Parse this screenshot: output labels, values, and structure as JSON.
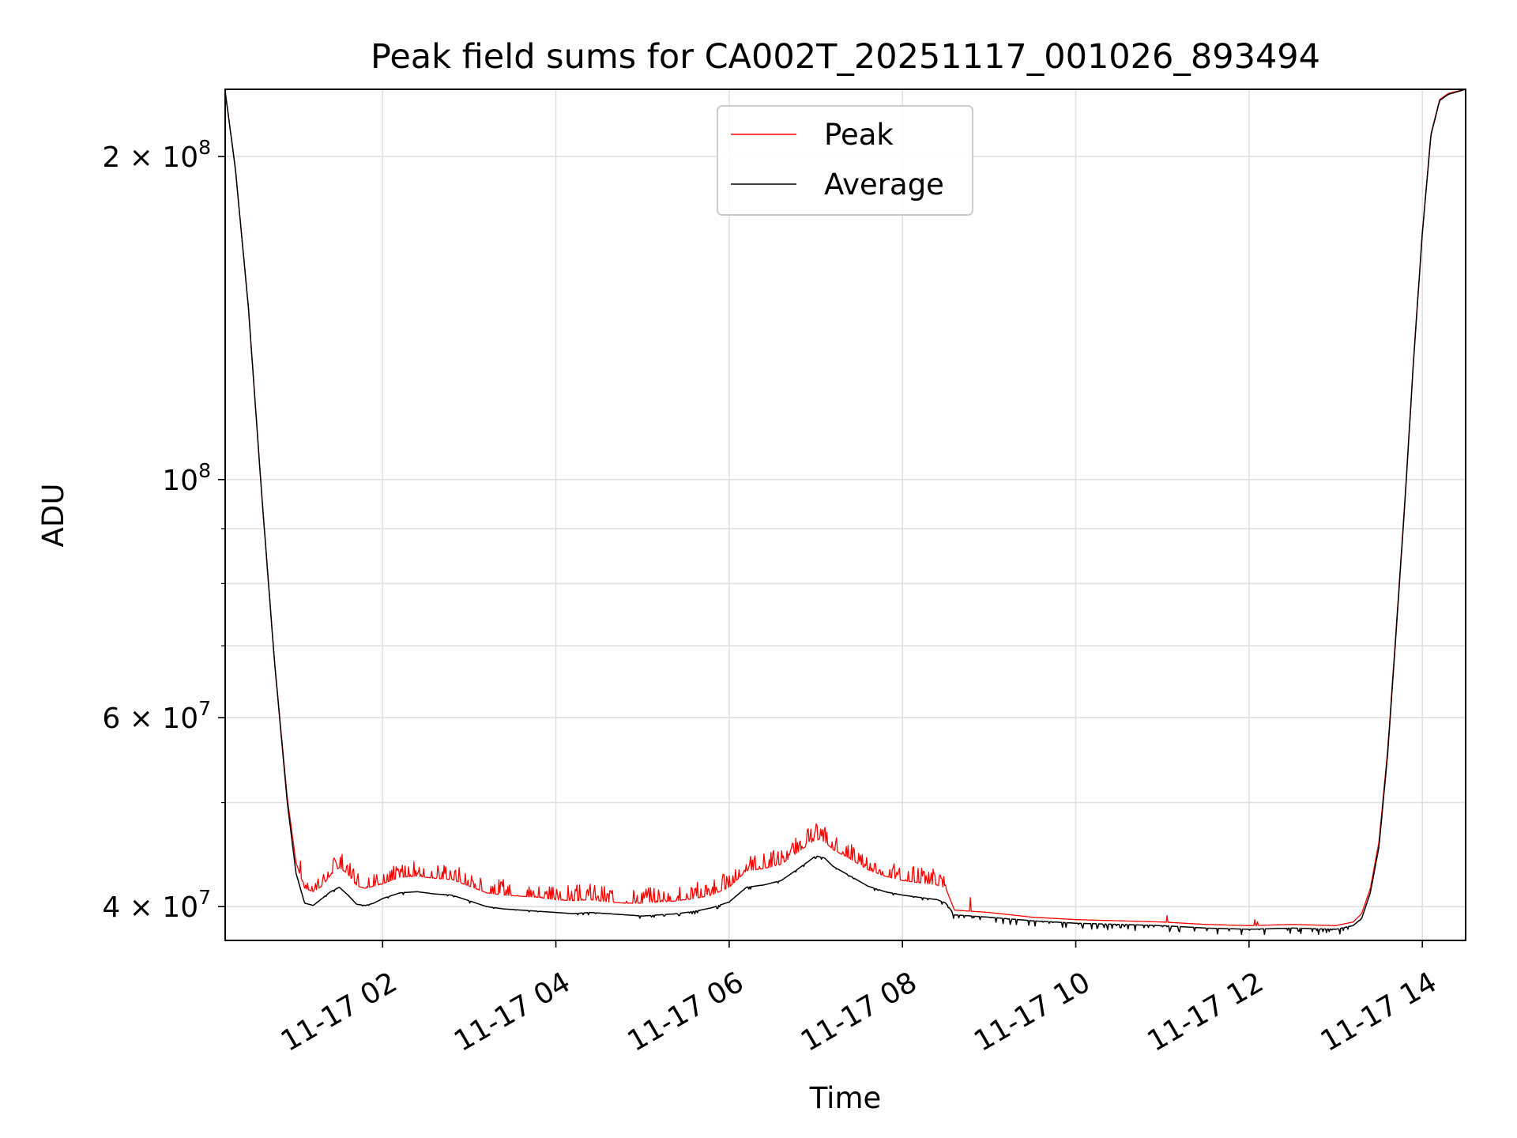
{
  "chart_data": {
    "type": "line",
    "title": "Peak field sums for CA002T_20251117_001026_893494",
    "xlabel": "Time",
    "ylabel": "ADU",
    "yscale": "log",
    "ylim": [
      37200000,
      231000000
    ],
    "xlim_hours": [
      0.183,
      14.5
    ],
    "grid": true,
    "legend": {
      "position": "top-center",
      "entries": [
        "Peak",
        "Average"
      ]
    },
    "x_ticks": [
      {
        "hour": 2,
        "label": "11-17 02"
      },
      {
        "hour": 4,
        "label": "11-17 04"
      },
      {
        "hour": 6,
        "label": "11-17 06"
      },
      {
        "hour": 8,
        "label": "11-17 08"
      },
      {
        "hour": 10,
        "label": "11-17 10"
      },
      {
        "hour": 12,
        "label": "11-17 12"
      },
      {
        "hour": 14,
        "label": "11-17 14"
      }
    ],
    "y_ticks": [
      {
        "value": 40000000,
        "label": "4 × 10",
        "exp": "7"
      },
      {
        "value": 60000000,
        "label": "6 × 10",
        "exp": "7"
      },
      {
        "value": 100000000,
        "label": "10",
        "exp": "8"
      },
      {
        "value": 200000000,
        "label": "2 × 10",
        "exp": "8"
      }
    ],
    "y_minor_ticks": [
      50000000,
      70000000,
      80000000,
      90000000
    ],
    "series": [
      {
        "name": "Peak",
        "color": "#ff0000",
        "x_hours": [
          0.18,
          0.3,
          0.45,
          0.6,
          0.75,
          0.9,
          1.0,
          1.1,
          1.2,
          1.3,
          1.4,
          1.5,
          1.6,
          1.7,
          1.8,
          1.9,
          2.0,
          2.2,
          2.4,
          2.6,
          2.8,
          3.0,
          3.2,
          3.4,
          3.6,
          3.8,
          4.0,
          4.2,
          4.4,
          4.6,
          4.8,
          5.0,
          5.2,
          5.4,
          5.6,
          5.8,
          6.0,
          6.2,
          6.4,
          6.6,
          6.8,
          7.0,
          7.1,
          7.2,
          7.4,
          7.6,
          7.8,
          8.0,
          8.2,
          8.4,
          8.5,
          8.6,
          8.8,
          9.0,
          9.5,
          10.0,
          10.5,
          11.0,
          11.5,
          12.0,
          12.5,
          13.0,
          13.2,
          13.3,
          13.4,
          13.5,
          13.6,
          13.7,
          13.8,
          13.9,
          14.0,
          14.1,
          14.2,
          14.3,
          14.5
        ],
        "values": [
          231000000,
          195000000,
          145000000,
          98000000,
          68000000,
          50500000,
          44000000,
          41600000,
          41300000,
          41800000,
          42800000,
          43500000,
          42900000,
          41800000,
          41600000,
          41800000,
          42000000,
          42600000,
          42700000,
          42500000,
          42400000,
          41800000,
          41200000,
          41000000,
          40900000,
          40800000,
          40600000,
          40500000,
          40600000,
          40400000,
          40300000,
          40300000,
          40400000,
          40500000,
          40700000,
          41000000,
          41700000,
          43200000,
          43400000,
          43800000,
          45000000,
          46200000,
          46000000,
          45200000,
          44300000,
          43300000,
          42700000,
          42300000,
          42100000,
          41900000,
          41600000,
          39700000,
          39600000,
          39500000,
          39100000,
          38900000,
          38800000,
          38700000,
          38500000,
          38400000,
          38500000,
          38400000,
          38700000,
          39400000,
          41600000,
          46000000,
          56000000,
          73000000,
          96000000,
          130000000,
          170000000,
          210000000,
          226000000,
          229000000,
          231000000
        ]
      },
      {
        "name": "Average",
        "color": "#000000",
        "x_hours": [
          0.18,
          0.3,
          0.45,
          0.6,
          0.75,
          0.9,
          1.0,
          1.1,
          1.2,
          1.3,
          1.4,
          1.5,
          1.6,
          1.7,
          1.8,
          1.9,
          2.0,
          2.2,
          2.4,
          2.6,
          2.8,
          3.0,
          3.2,
          3.4,
          3.6,
          3.8,
          4.0,
          4.2,
          4.4,
          4.6,
          4.8,
          5.0,
          5.2,
          5.4,
          5.6,
          5.8,
          6.0,
          6.2,
          6.4,
          6.6,
          6.8,
          7.0,
          7.1,
          7.2,
          7.4,
          7.6,
          7.8,
          8.0,
          8.2,
          8.4,
          8.5,
          8.6,
          8.8,
          9.0,
          9.5,
          10.0,
          10.5,
          11.0,
          11.5,
          12.0,
          12.5,
          13.0,
          13.2,
          13.3,
          13.4,
          13.5,
          13.6,
          13.7,
          13.8,
          13.9,
          14.0,
          14.1,
          14.2,
          14.3,
          14.5
        ],
        "values": [
          231000000,
          195000000,
          145000000,
          98000000,
          68000000,
          50000000,
          43000000,
          40300000,
          40100000,
          40700000,
          41300000,
          41700000,
          41000000,
          40200000,
          40100000,
          40300000,
          40700000,
          41200000,
          41300000,
          41100000,
          41000000,
          40500000,
          40000000,
          39800000,
          39700000,
          39600000,
          39500000,
          39400000,
          39500000,
          39400000,
          39300000,
          39200000,
          39300000,
          39400000,
          39600000,
          39900000,
          40400000,
          41700000,
          41900000,
          42300000,
          43400000,
          44600000,
          44400000,
          43600000,
          42700000,
          41800000,
          41300000,
          41000000,
          40800000,
          40600000,
          40300000,
          39300000,
          39200000,
          39100000,
          38800000,
          38600000,
          38500000,
          38400000,
          38200000,
          38100000,
          38200000,
          38100000,
          38400000,
          39000000,
          41200000,
          45500000,
          55500000,
          72500000,
          95500000,
          129500000,
          169500000,
          209500000,
          225500000,
          228500000,
          231000000
        ]
      }
    ]
  }
}
